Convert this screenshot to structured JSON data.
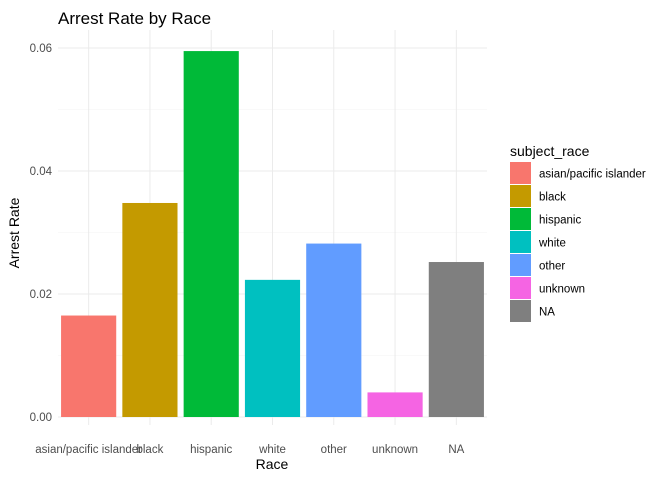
{
  "chart_data": {
    "type": "bar",
    "title": "Arrest Rate by Race",
    "xlabel": "Race",
    "ylabel": "Arrest Rate",
    "categories": [
      "asian/pacific islander",
      "black",
      "hispanic",
      "white",
      "other",
      "unknown",
      "NA"
    ],
    "values": [
      0.0165,
      0.0348,
      0.0595,
      0.0223,
      0.0282,
      0.004,
      0.0252
    ],
    "colors": [
      "#F8766D",
      "#C49A00",
      "#00BA38",
      "#00C0C0",
      "#619CFF",
      "#F564E3",
      "#7F7F7F"
    ],
    "ylim": [
      0,
      0.06
    ],
    "yticks": [
      0.0,
      0.02,
      0.04,
      0.06
    ],
    "ytick_labels": [
      "0.00",
      "0.02",
      "0.04",
      "0.06"
    ],
    "grid": true,
    "legend": {
      "title": "subject_race",
      "position": "right",
      "entries": [
        "asian/pacific islander",
        "black",
        "hispanic",
        "white",
        "other",
        "unknown",
        "NA"
      ]
    }
  }
}
